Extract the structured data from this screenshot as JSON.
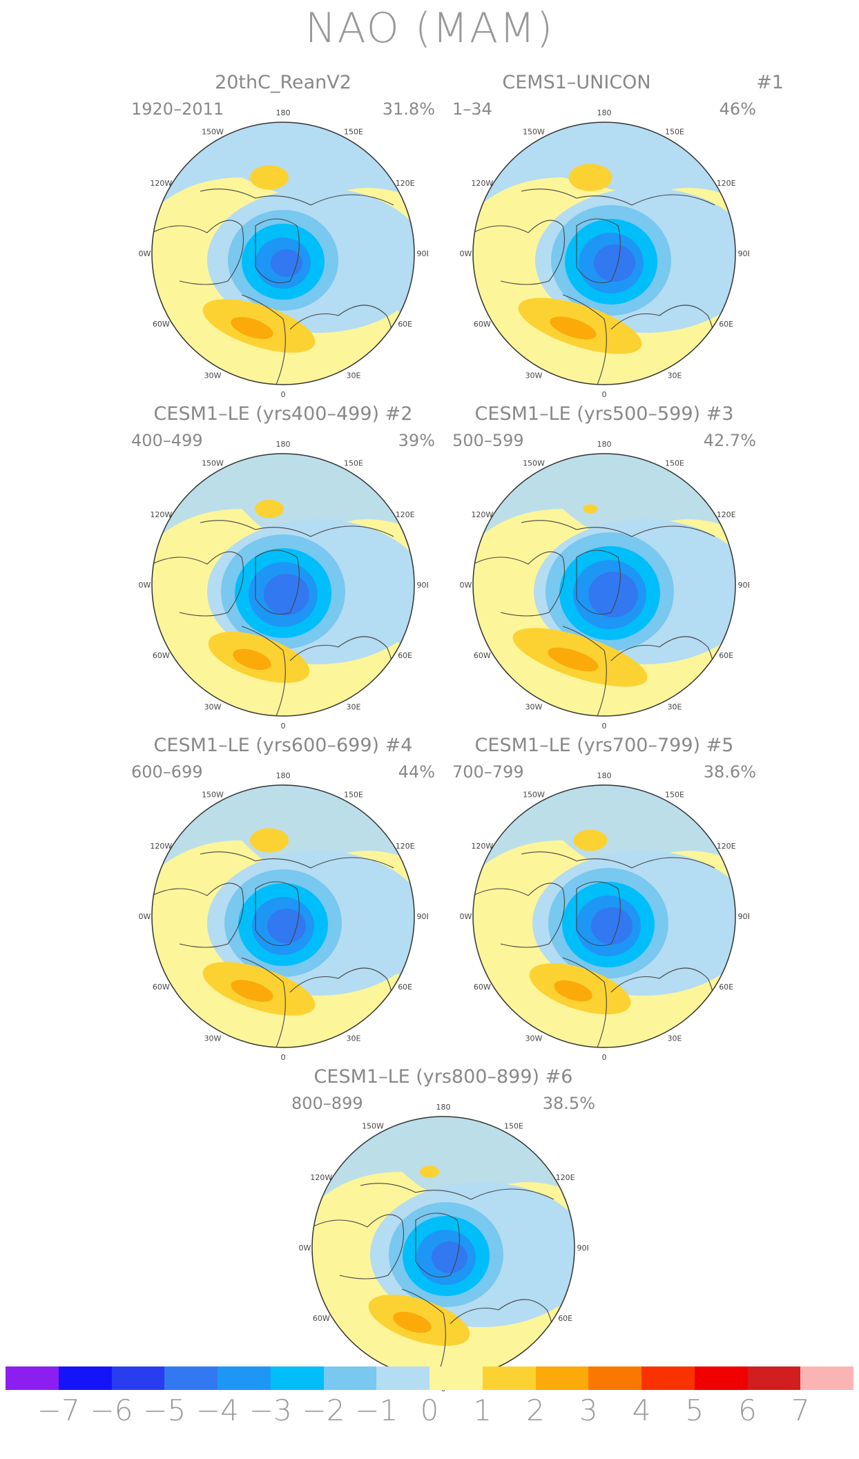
{
  "title": "NAO (MAM)",
  "lon_labels": [
    "180",
    "150E",
    "120E",
    "90E",
    "60E",
    "30E",
    "0",
    "30W",
    "60W",
    "90W",
    "120W",
    "150W"
  ],
  "colors": {
    "yellow": "#fcf59a",
    "ltblue": "#b4dcf2",
    "orange1": "#fcd232",
    "orange2": "#fbaa0a",
    "blue1": "#78c8f0",
    "blue2": "#00befa",
    "blue3": "#1e96f5",
    "blue4": "#3278f0",
    "coast": "#444444"
  },
  "panels": [
    {
      "title": "20thC_ReanV2",
      "years": "1920–2011",
      "pct": "31.8%",
      "num": ""
    },
    {
      "title": "CEMS1–UNICON",
      "years": "1–34",
      "pct": "46%",
      "num": "#1"
    },
    {
      "title": "CESM1–LE (yrs400–499) #2",
      "years": "400–499",
      "pct": "39%",
      "num": ""
    },
    {
      "title": "CESM1–LE (yrs500–599) #3",
      "years": "500–599",
      "pct": "42.7%",
      "num": ""
    },
    {
      "title": "CESM1–LE (yrs600–699) #4",
      "years": "600–699",
      "pct": "44%",
      "num": ""
    },
    {
      "title": "CESM1–LE (yrs700–799) #5",
      "years": "700–799",
      "pct": "38.6%",
      "num": ""
    },
    {
      "title": "CESM1–LE (yrs800–899) #6",
      "years": "800–899",
      "pct": "38.5%",
      "num": ""
    }
  ],
  "colorbar": {
    "colors": [
      "#8c1ef0",
      "#1414fa",
      "#283cf0",
      "#3278f0",
      "#1e96f5",
      "#00befa",
      "#78c8f0",
      "#b4dcf2",
      "#fcf59a",
      "#fcd232",
      "#fbaa0a",
      "#fa7800",
      "#fa3200",
      "#f00000",
      "#d21e1e",
      "#fab4b4"
    ],
    "labels": [
      "−7",
      "−6",
      "−5",
      "−4",
      "−3",
      "−2",
      "−1",
      "0",
      "1",
      "2",
      "3",
      "4",
      "5",
      "6",
      "7"
    ]
  }
}
